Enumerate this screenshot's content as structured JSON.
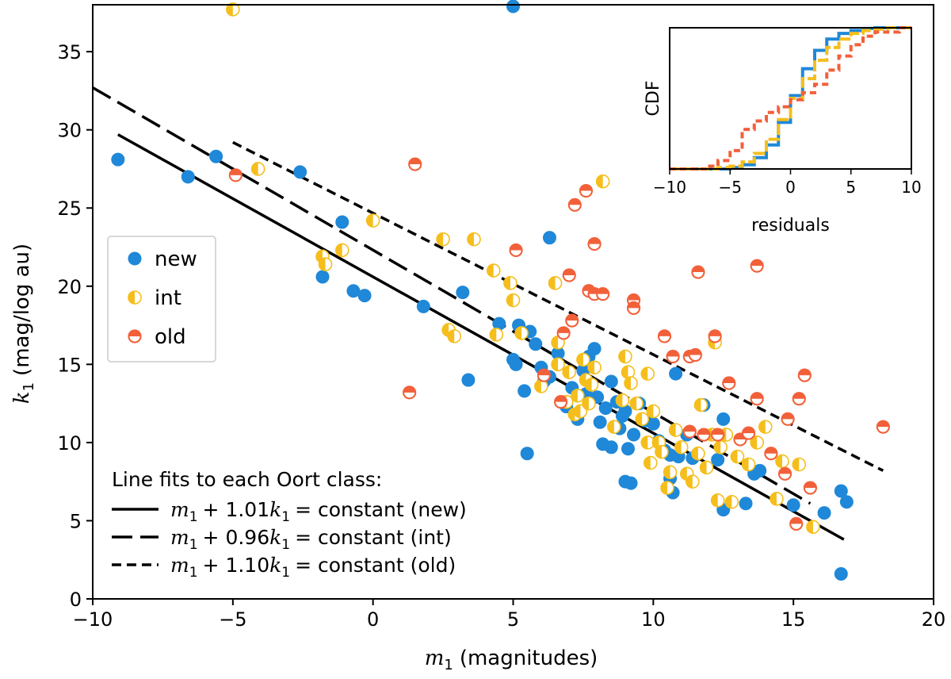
{
  "chart_data": {
    "type": "scatter",
    "xlabel": "(magnitudes)",
    "xlabel_symbol": "m",
    "xlabel_sub": "1",
    "ylabel": "(mag/log au)",
    "ylabel_symbol": "k",
    "ylabel_sub": "1",
    "xlim": [
      -10,
      20
    ],
    "ylim": [
      0,
      38
    ],
    "xticks": [
      -10,
      -5,
      0,
      5,
      10,
      15,
      20
    ],
    "xtick_labels": [
      "−10",
      "−5",
      "0",
      "5",
      "10",
      "15",
      "20"
    ],
    "yticks": [
      0,
      5,
      10,
      15,
      20,
      25,
      30,
      35
    ],
    "ytick_labels": [
      "0",
      "5",
      "10",
      "15",
      "20",
      "25",
      "30",
      "35"
    ],
    "series": [
      {
        "name": "new",
        "color": "#1f88d8",
        "marker": "full",
        "points": [
          [
            -9.1,
            28.1
          ],
          [
            -6.6,
            27.0
          ],
          [
            -5.6,
            28.3
          ],
          [
            -2.6,
            27.3
          ],
          [
            -1.1,
            24.1
          ],
          [
            -1.8,
            20.6
          ],
          [
            -0.7,
            19.7
          ],
          [
            -0.3,
            19.4
          ],
          [
            1.8,
            18.7
          ],
          [
            3.2,
            19.6
          ],
          [
            3.4,
            14.0
          ],
          [
            4.5,
            17.6
          ],
          [
            5.0,
            37.9
          ],
          [
            5.0,
            15.3
          ],
          [
            5.2,
            17.5
          ],
          [
            5.1,
            15.0
          ],
          [
            5.4,
            13.3
          ],
          [
            5.6,
            17.1
          ],
          [
            5.8,
            16.3
          ],
          [
            6.0,
            14.8
          ],
          [
            6.3,
            23.1
          ],
          [
            6.1,
            13.9
          ],
          [
            6.3,
            14.2
          ],
          [
            5.5,
            9.3
          ],
          [
            6.6,
            15.7
          ],
          [
            6.9,
            12.3
          ],
          [
            7.1,
            13.5
          ],
          [
            7.3,
            11.5
          ],
          [
            7.5,
            14.6
          ],
          [
            7.6,
            13.1
          ],
          [
            7.7,
            15.5
          ],
          [
            7.9,
            16.0
          ],
          [
            8.0,
            12.9
          ],
          [
            8.1,
            11.3
          ],
          [
            8.3,
            12.2
          ],
          [
            8.5,
            13.9
          ],
          [
            8.7,
            12.6
          ],
          [
            8.9,
            11.7
          ],
          [
            9.0,
            12.0
          ],
          [
            8.2,
            9.9
          ],
          [
            8.5,
            9.7
          ],
          [
            8.8,
            10.9
          ],
          [
            9.1,
            9.6
          ],
          [
            9.3,
            10.5
          ],
          [
            9.5,
            12.5
          ],
          [
            9.7,
            11.4
          ],
          [
            9.2,
            7.4
          ],
          [
            9.0,
            7.5
          ],
          [
            10.0,
            11.2
          ],
          [
            10.2,
            10.1
          ],
          [
            10.4,
            9.5
          ],
          [
            10.6,
            9.2
          ],
          [
            10.8,
            14.4
          ],
          [
            10.6,
            7.7
          ],
          [
            10.7,
            6.8
          ],
          [
            10.9,
            9.1
          ],
          [
            11.2,
            10.5
          ],
          [
            11.4,
            9.0
          ],
          [
            11.8,
            12.4
          ],
          [
            12.3,
            8.9
          ],
          [
            12.5,
            11.5
          ],
          [
            12.5,
            5.7
          ],
          [
            13.3,
            6.1
          ],
          [
            13.6,
            8.0
          ],
          [
            13.8,
            8.2
          ],
          [
            15.0,
            6.0
          ],
          [
            16.1,
            5.5
          ],
          [
            16.7,
            6.9
          ],
          [
            16.9,
            6.2
          ],
          [
            16.7,
            1.6
          ]
        ]
      },
      {
        "name": "int",
        "color": "#f5be1c",
        "marker": "half",
        "points": [
          [
            -5.0,
            37.7
          ],
          [
            -4.1,
            27.5
          ],
          [
            -1.8,
            21.9
          ],
          [
            -1.7,
            21.4
          ],
          [
            -1.1,
            22.3
          ],
          [
            0.0,
            24.2
          ],
          [
            2.5,
            23.0
          ],
          [
            2.7,
            17.2
          ],
          [
            2.9,
            16.8
          ],
          [
            3.6,
            23.0
          ],
          [
            4.3,
            21.0
          ],
          [
            4.4,
            16.9
          ],
          [
            4.9,
            20.2
          ],
          [
            5.0,
            19.1
          ],
          [
            5.3,
            17.0
          ],
          [
            6.0,
            13.6
          ],
          [
            6.5,
            20.2
          ],
          [
            6.6,
            16.4
          ],
          [
            6.6,
            15.0
          ],
          [
            6.9,
            12.6
          ],
          [
            7.0,
            14.5
          ],
          [
            7.2,
            11.8
          ],
          [
            7.3,
            13.0
          ],
          [
            7.4,
            12.0
          ],
          [
            7.5,
            15.3
          ],
          [
            7.6,
            14.0
          ],
          [
            7.7,
            12.5
          ],
          [
            7.8,
            13.7
          ],
          [
            7.9,
            14.8
          ],
          [
            8.2,
            26.7
          ],
          [
            8.6,
            11.0
          ],
          [
            8.9,
            12.7
          ],
          [
            9.0,
            15.5
          ],
          [
            9.1,
            14.5
          ],
          [
            9.2,
            13.8
          ],
          [
            9.4,
            12.5
          ],
          [
            9.6,
            11.5
          ],
          [
            9.8,
            14.4
          ],
          [
            9.8,
            10.0
          ],
          [
            9.9,
            8.7
          ],
          [
            10.0,
            12.0
          ],
          [
            10.2,
            10.0
          ],
          [
            10.3,
            9.4
          ],
          [
            10.5,
            7.1
          ],
          [
            10.6,
            8.1
          ],
          [
            10.8,
            10.8
          ],
          [
            11.0,
            9.7
          ],
          [
            11.2,
            8.0
          ],
          [
            11.4,
            7.5
          ],
          [
            11.6,
            9.3
          ],
          [
            11.7,
            12.4
          ],
          [
            11.9,
            8.4
          ],
          [
            12.1,
            10.5
          ],
          [
            12.2,
            16.4
          ],
          [
            12.4,
            9.7
          ],
          [
            12.6,
            10.5
          ],
          [
            12.3,
            6.3
          ],
          [
            12.8,
            6.2
          ],
          [
            13.0,
            9.1
          ],
          [
            13.4,
            8.6
          ],
          [
            13.7,
            10.0
          ],
          [
            14.0,
            11.0
          ],
          [
            14.6,
            8.8
          ],
          [
            14.4,
            6.4
          ],
          [
            15.2,
            8.6
          ],
          [
            15.7,
            4.6
          ]
        ]
      },
      {
        "name": "old",
        "color": "#f2603a",
        "marker": "half-h",
        "points": [
          [
            -4.9,
            27.1
          ],
          [
            1.3,
            13.2
          ],
          [
            1.5,
            27.8
          ],
          [
            5.1,
            22.3
          ],
          [
            6.1,
            14.3
          ],
          [
            6.7,
            12.6
          ],
          [
            6.8,
            17.0
          ],
          [
            7.0,
            20.7
          ],
          [
            7.2,
            25.2
          ],
          [
            7.6,
            26.1
          ],
          [
            7.7,
            19.7
          ],
          [
            7.9,
            19.5
          ],
          [
            7.1,
            17.8
          ],
          [
            7.9,
            22.7
          ],
          [
            8.2,
            19.5
          ],
          [
            9.3,
            19.1
          ],
          [
            9.3,
            18.6
          ],
          [
            10.4,
            16.8
          ],
          [
            10.7,
            15.5
          ],
          [
            11.3,
            15.5
          ],
          [
            11.5,
            15.6
          ],
          [
            11.6,
            20.9
          ],
          [
            12.2,
            16.8
          ],
          [
            11.3,
            10.7
          ],
          [
            11.8,
            10.5
          ],
          [
            12.3,
            10.5
          ],
          [
            12.7,
            13.8
          ],
          [
            13.1,
            10.2
          ],
          [
            13.4,
            10.6
          ],
          [
            13.7,
            12.8
          ],
          [
            13.7,
            21.3
          ],
          [
            14.2,
            9.3
          ],
          [
            14.8,
            11.5
          ],
          [
            15.2,
            12.8
          ],
          [
            15.4,
            14.3
          ],
          [
            15.6,
            7.1
          ],
          [
            14.7,
            8.0
          ],
          [
            15.1,
            4.8
          ],
          [
            18.2,
            11.0
          ]
        ]
      }
    ],
    "fit_lines": [
      {
        "name": "new",
        "style": "solid",
        "x": [
          -9.1,
          16.8
        ],
        "y": [
          29.7,
          3.8
        ]
      },
      {
        "name": "int",
        "style": "longdash",
        "x": [
          -10.0,
          15.6
        ],
        "y": [
          32.7,
          6.1
        ]
      },
      {
        "name": "old",
        "style": "shortdash",
        "x": [
          -5.0,
          18.2
        ],
        "y": [
          29.2,
          8.2
        ]
      }
    ],
    "legend": {
      "position": "center-left",
      "entries": [
        "new",
        "int",
        "old"
      ]
    },
    "fit_legend": {
      "title": "Line fits to each Oort class:",
      "entries": [
        {
          "style": "solid",
          "coef": "1.01",
          "suffix": "= constant (new)"
        },
        {
          "style": "longdash",
          "coef": "0.96",
          "suffix": "= constant (int)"
        },
        {
          "style": "shortdash",
          "coef": "1.10",
          "suffix": "= constant (old)"
        }
      ],
      "sym_m": "m",
      "sym_k": "k",
      "sub": "1",
      "plus": "+"
    },
    "inset": {
      "type": "line",
      "position": "top-right",
      "xlabel": "residuals",
      "ylabel": "CDF",
      "xlim": [
        -10,
        10
      ],
      "ylim": [
        0,
        1
      ],
      "xticks": [
        -10,
        -5,
        0,
        5,
        10
      ],
      "xtick_labels": [
        "−10",
        "−5",
        "0",
        "5",
        "10"
      ],
      "series": [
        {
          "name": "new",
          "color": "#1f88d8",
          "x": [
            -10,
            -5,
            -4,
            -3,
            -2,
            -1,
            0,
            1,
            2,
            3,
            4,
            5,
            6,
            7,
            10
          ],
          "y": [
            0.0,
            0.01,
            0.03,
            0.08,
            0.17,
            0.33,
            0.52,
            0.71,
            0.84,
            0.92,
            0.96,
            0.98,
            0.995,
            1.0,
            1.0
          ]
        },
        {
          "name": "int",
          "color": "#f5be1c",
          "x": [
            -10,
            -6,
            -5,
            -4,
            -3,
            -2,
            -1,
            0,
            1,
            2,
            3,
            4,
            5,
            6,
            7,
            8,
            10
          ],
          "y": [
            0.0,
            0.01,
            0.02,
            0.05,
            0.11,
            0.21,
            0.35,
            0.5,
            0.64,
            0.77,
            0.86,
            0.92,
            0.96,
            0.98,
            0.99,
            1.0,
            1.0
          ]
        },
        {
          "name": "old",
          "color": "#f2603a",
          "x": [
            -10,
            -7,
            -6,
            -5,
            -4,
            -3,
            -2,
            -1,
            0,
            1,
            2,
            3,
            4,
            5,
            6,
            7,
            9,
            10
          ],
          "y": [
            0.0,
            0.02,
            0.06,
            0.13,
            0.28,
            0.34,
            0.4,
            0.44,
            0.49,
            0.54,
            0.6,
            0.7,
            0.8,
            0.88,
            0.94,
            0.97,
            1.0,
            1.0
          ]
        }
      ]
    }
  }
}
